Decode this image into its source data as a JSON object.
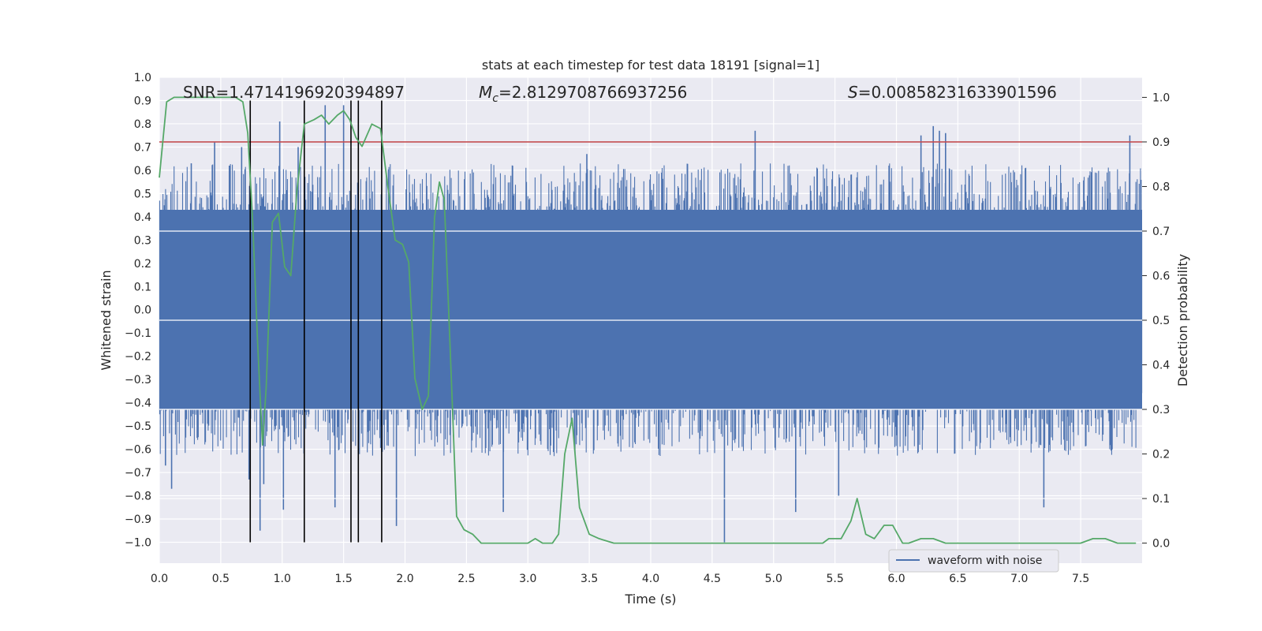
{
  "chart_data": {
    "type": "line",
    "title": "stats at each timestep for test data 18191 [signal=1]",
    "xlabel": "Time (s)",
    "ylabel": "Whitened strain",
    "y2label": "Detection probability",
    "xlim": [
      0.0,
      8.0
    ],
    "ylim": [
      -1.09,
      1.0
    ],
    "y2lim": [
      -0.045,
      1.045
    ],
    "x_ticks": [
      "0.0",
      "0.5",
      "1.0",
      "1.5",
      "2.0",
      "2.5",
      "3.0",
      "3.5",
      "4.0",
      "4.5",
      "5.0",
      "5.5",
      "6.0",
      "6.5",
      "7.0",
      "7.5"
    ],
    "y_ticks": [
      "1.0",
      "0.9",
      "0.8",
      "0.7",
      "0.6",
      "0.5",
      "0.4",
      "0.3",
      "0.2",
      "0.1",
      "0.0",
      "−0.1",
      "−0.2",
      "−0.3",
      "−0.4",
      "−0.5",
      "−0.6",
      "−0.7",
      "−0.8",
      "−0.9",
      "−1.0"
    ],
    "y2_ticks": [
      "1.0",
      "0.9",
      "0.8",
      "0.7",
      "0.6",
      "0.5",
      "0.4",
      "0.3",
      "0.2",
      "0.1",
      "0.0"
    ],
    "annotations": {
      "snr": "SNR=1.4714196920394897",
      "mc_symbol": "M",
      "mc_sub": "c",
      "mc_value": "=2.8129708766937256",
      "s_symbol": "S",
      "s_value": "=0.00858231633901596"
    },
    "legend": {
      "label": "waveform with noise",
      "placement": "lower-right"
    },
    "threshold": {
      "value": 0.9,
      "color": "#c44e52"
    },
    "vlines": [
      0.74,
      1.18,
      1.56,
      1.62,
      1.81
    ],
    "vline_range": [
      -1.0,
      0.9
    ],
    "series": [
      {
        "name": "waveform with noise",
        "color": "#4c72b0",
        "kind": "noise",
        "envelope_inner": 0.33,
        "envelope_outer": 0.43,
        "peaks": [
          {
            "x": 0.05,
            "v": -0.67
          },
          {
            "x": 0.1,
            "v": -0.77
          },
          {
            "x": 0.26,
            "v": 0.63
          },
          {
            "x": 0.45,
            "v": 0.72
          },
          {
            "x": 0.57,
            "v": 0.62
          },
          {
            "x": 0.67,
            "v": 0.7
          },
          {
            "x": 0.73,
            "v": -0.73
          },
          {
            "x": 0.82,
            "v": -0.95
          },
          {
            "x": 0.85,
            "v": -0.75
          },
          {
            "x": 0.98,
            "v": 0.81
          },
          {
            "x": 1.01,
            "v": -0.86
          },
          {
            "x": 1.13,
            "v": 0.7
          },
          {
            "x": 1.35,
            "v": 0.88
          },
          {
            "x": 1.43,
            "v": -0.85
          },
          {
            "x": 1.5,
            "v": 0.88
          },
          {
            "x": 1.93,
            "v": -0.93
          },
          {
            "x": 2.8,
            "v": -0.87
          },
          {
            "x": 3.38,
            "v": -0.6
          },
          {
            "x": 3.48,
            "v": 0.67
          },
          {
            "x": 4.6,
            "v": -1.0
          },
          {
            "x": 4.85,
            "v": 0.77
          },
          {
            "x": 5.18,
            "v": -0.87
          },
          {
            "x": 5.53,
            "v": -0.8
          },
          {
            "x": 6.2,
            "v": 0.75
          },
          {
            "x": 6.3,
            "v": 0.79
          },
          {
            "x": 6.35,
            "v": 0.77
          },
          {
            "x": 6.4,
            "v": 0.76
          },
          {
            "x": 7.2,
            "v": -0.85
          },
          {
            "x": 7.9,
            "v": 0.75
          }
        ]
      },
      {
        "name": "Detection probability",
        "color": "#55a868",
        "axis": "y2",
        "x": [
          0.0,
          0.06,
          0.12,
          0.2,
          0.3,
          0.4,
          0.5,
          0.62,
          0.68,
          0.72,
          0.76,
          0.8,
          0.84,
          0.87,
          0.92,
          0.97,
          1.02,
          1.07,
          1.12,
          1.18,
          1.26,
          1.32,
          1.38,
          1.45,
          1.5,
          1.55,
          1.6,
          1.65,
          1.73,
          1.8,
          1.86,
          1.92,
          1.98,
          2.03,
          2.08,
          2.14,
          2.19,
          2.24,
          2.28,
          2.32,
          2.37,
          2.42,
          2.48,
          2.55,
          2.62,
          2.7,
          2.8,
          2.9,
          3.0,
          3.06,
          3.12,
          3.2,
          3.25,
          3.3,
          3.36,
          3.42,
          3.5,
          3.58,
          3.7,
          3.85,
          4.0,
          4.2,
          4.35,
          4.5,
          4.6,
          4.68,
          4.8,
          5.0,
          5.2,
          5.4,
          5.45,
          5.55,
          5.63,
          5.68,
          5.75,
          5.82,
          5.9,
          5.97,
          6.05,
          6.1,
          6.2,
          6.3,
          6.4,
          6.5,
          6.6,
          6.7,
          6.9,
          7.1,
          7.3,
          7.5,
          7.6,
          7.7,
          7.8,
          7.95
        ],
        "y": [
          0.82,
          0.99,
          1.0,
          1.0,
          1.0,
          1.0,
          1.0,
          1.0,
          0.99,
          0.92,
          0.72,
          0.45,
          0.22,
          0.35,
          0.72,
          0.74,
          0.62,
          0.6,
          0.79,
          0.94,
          0.95,
          0.96,
          0.94,
          0.96,
          0.97,
          0.95,
          0.91,
          0.89,
          0.94,
          0.93,
          0.8,
          0.68,
          0.67,
          0.63,
          0.37,
          0.3,
          0.33,
          0.73,
          0.81,
          0.77,
          0.42,
          0.06,
          0.03,
          0.02,
          0.0,
          0.0,
          0.0,
          0.0,
          0.0,
          0.01,
          0.0,
          0.0,
          0.02,
          0.2,
          0.28,
          0.08,
          0.02,
          0.01,
          0.0,
          0.0,
          0.0,
          0.0,
          0.0,
          0.0,
          0.0,
          0.0,
          0.0,
          0.0,
          0.0,
          0.0,
          0.01,
          0.01,
          0.05,
          0.1,
          0.02,
          0.01,
          0.04,
          0.04,
          0.0,
          0.0,
          0.01,
          0.01,
          0.0,
          0.0,
          0.0,
          0.0,
          0.0,
          0.0,
          0.0,
          0.0,
          0.01,
          0.01,
          0.0,
          0.0
        ]
      }
    ]
  }
}
